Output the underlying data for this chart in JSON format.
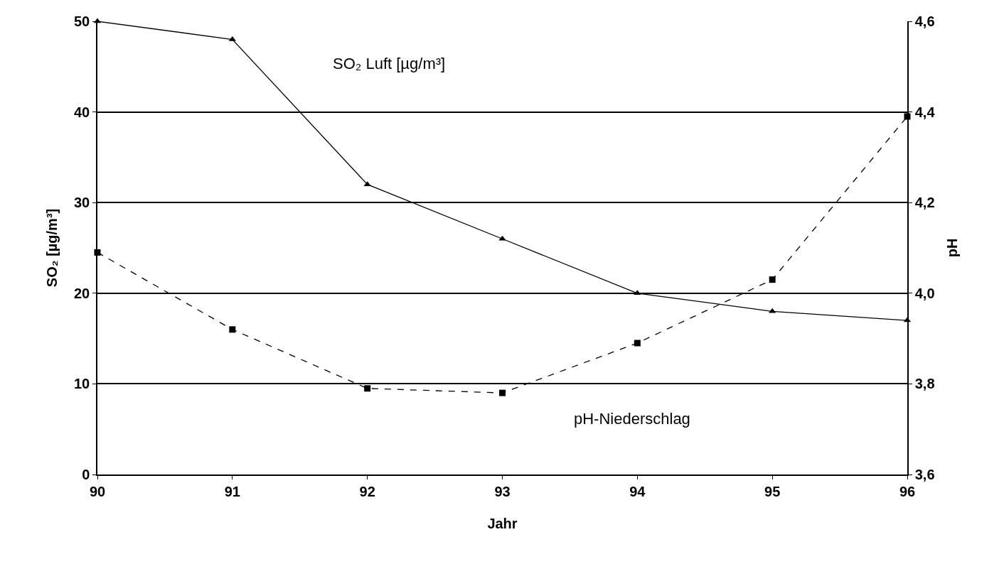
{
  "chart_data": {
    "type": "line",
    "xlabel": "Jahr",
    "ylabel": "SO₂ [µg/m³]",
    "y2label": "pH",
    "x": [
      90,
      91,
      92,
      93,
      94,
      95,
      96
    ],
    "series": [
      {
        "color": "#000000",
        "marker": "triangle",
        "line_style": "solid",
        "values": [
          50,
          48,
          32,
          26,
          20,
          18,
          17
        ]
      },
      {
        "color": "#000000",
        "marker": "square",
        "line_style": "dashed",
        "axis": "y2",
        "values": [
          4.09,
          3.92,
          3.79,
          3.78,
          3.89,
          4.03,
          4.39
        ]
      }
    ],
    "xlim": [
      90,
      96
    ],
    "xticks": [
      90,
      91,
      92,
      93,
      94,
      95,
      96
    ],
    "ylim": [
      0,
      50
    ],
    "yticks": [
      0,
      10,
      20,
      30,
      40,
      50
    ],
    "y2lim": [
      3.6,
      4.6
    ],
    "y2ticks": [
      {
        "value": 3.6,
        "label": "3,6"
      },
      {
        "value": 3.8,
        "label": "3,8"
      },
      {
        "value": 4.0,
        "label": "4,0"
      },
      {
        "value": 4.2,
        "label": "4,2"
      },
      {
        "value": 4.4,
        "label": "4,4"
      },
      {
        "value": 4.6,
        "label": "4,6"
      }
    ],
    "grid": "y",
    "annotations": [
      "SO₂ Luft [µg/m³]",
      "pH-Niederschlag"
    ]
  }
}
